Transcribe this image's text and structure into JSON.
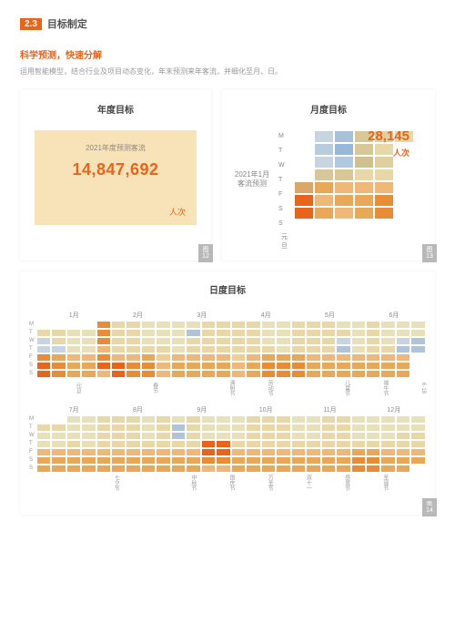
{
  "section": {
    "num": "2.3",
    "title": "目标制定"
  },
  "sub": "科学预测，快速分解",
  "desc": "运用智能模型，结合行业及项目动态变化，年末预测来年客流，并细化至月、日。",
  "annual": {
    "title": "年度目标",
    "box_title": "2021年度预测客流",
    "value": "14,847,692",
    "unit": "人次",
    "tab": "图\n12"
  },
  "monthly": {
    "title": "月度目标",
    "label": "2021年1月\n客流预测",
    "big": "28,145",
    "unit": "人次",
    "foot": "元\n旦",
    "tab": "图\n13",
    "days": [
      "M",
      "T",
      "W",
      "T",
      "F",
      "S",
      "S"
    ],
    "cols": [
      [
        "#ffffff",
        "#ffffff",
        "#ffffff",
        "#ffffff",
        "#d9a868",
        "#e8641b",
        "#e8641b"
      ],
      [
        "#c8d4e0",
        "#b8cce0",
        "#c8d4e0",
        "#d8c898",
        "#e8a858",
        "#f0b878",
        "#e8a858"
      ],
      [
        "#a8c0d8",
        "#98b8d8",
        "#b0c8e0",
        "#d8c898",
        "#f0b878",
        "#e8a858",
        "#f0b878"
      ],
      [
        "#d8c898",
        "#d8c898",
        "#d0c090",
        "#e8d8a8",
        "#f0b878",
        "#e8a858",
        "#e8a858"
      ],
      [
        "#e0d0a0",
        "#e8d8a8",
        "#e0d0a0",
        "#e8d8a8",
        "#f0b878",
        "#e88c38",
        "#e88c38"
      ],
      [
        "#e8d8a8",
        "#ffffff",
        "#ffffff",
        "#ffffff",
        "#ffffff",
        "#ffffff",
        "#ffffff"
      ]
    ]
  },
  "daily": {
    "title": "日度目标",
    "tab": "14",
    "palette": [
      "#ffffff",
      "#b0c4d8",
      "#c8d4e0",
      "#e8e0b8",
      "#e8d8a8",
      "#f0d090",
      "#f0b878",
      "#e8a858",
      "#e88c38",
      "#e8641b"
    ],
    "months1": [
      "1月",
      "2月",
      "3月",
      "4月",
      "5月",
      "6月"
    ],
    "months2": [
      "7月",
      "8月",
      "9月",
      "10月",
      "11月",
      "12月"
    ],
    "hol1": [
      "元旦",
      "",
      "春节",
      "",
      "清明节",
      "劳动节",
      "",
      "儿童节",
      "端午节",
      "6·18"
    ],
    "hol2": [
      "",
      "七夕节",
      "",
      "中秋节",
      "国庆节",
      "万圣节",
      "双十一",
      "感恩节",
      "圣诞节",
      ""
    ],
    "days": [
      "M",
      "T",
      "W",
      "T",
      "F",
      "S",
      "S"
    ],
    "g1": [
      [
        0,
        0,
        0,
        0,
        8,
        4,
        4,
        3,
        3,
        3,
        3,
        4,
        4,
        4,
        4,
        3,
        3,
        4,
        4,
        4,
        3,
        3,
        4,
        3,
        3,
        3
      ],
      [
        4,
        4,
        3,
        3,
        8,
        4,
        4,
        3,
        3,
        3,
        1,
        4,
        4,
        4,
        4,
        3,
        3,
        4,
        4,
        4,
        4,
        3,
        4,
        3,
        3,
        3
      ],
      [
        2,
        4,
        3,
        3,
        8,
        4,
        4,
        3,
        3,
        3,
        4,
        4,
        4,
        4,
        4,
        3,
        3,
        4,
        4,
        4,
        2,
        3,
        4,
        3,
        2,
        1
      ],
      [
        2,
        2,
        3,
        3,
        6,
        4,
        4,
        4,
        4,
        3,
        4,
        4,
        4,
        4,
        4,
        4,
        3,
        4,
        4,
        4,
        1,
        3,
        4,
        4,
        1,
        1
      ],
      [
        8,
        7,
        6,
        6,
        8,
        6,
        6,
        7,
        5,
        6,
        6,
        6,
        6,
        5,
        6,
        7,
        7,
        7,
        6,
        6,
        6,
        6,
        6,
        6,
        6,
        0
      ],
      [
        9,
        8,
        7,
        7,
        9,
        9,
        8,
        8,
        6,
        7,
        7,
        7,
        7,
        6,
        7,
        8,
        8,
        8,
        7,
        7,
        7,
        7,
        7,
        7,
        7,
        0
      ],
      [
        9,
        8,
        7,
        7,
        6,
        9,
        8,
        8,
        6,
        7,
        7,
        7,
        7,
        6,
        7,
        8,
        8,
        8,
        7,
        7,
        7,
        7,
        7,
        7,
        7,
        0
      ]
    ],
    "g2": [
      [
        0,
        0,
        3,
        3,
        4,
        4,
        4,
        3,
        4,
        3,
        4,
        3,
        3,
        3,
        4,
        4,
        4,
        3,
        3,
        4,
        4,
        3,
        3,
        3,
        3,
        3
      ],
      [
        4,
        4,
        3,
        3,
        4,
        4,
        4,
        3,
        4,
        1,
        4,
        3,
        3,
        3,
        4,
        4,
        4,
        3,
        3,
        4,
        4,
        3,
        3,
        3,
        3,
        3
      ],
      [
        3,
        3,
        3,
        3,
        4,
        4,
        4,
        3,
        4,
        1,
        4,
        3,
        3,
        3,
        4,
        4,
        4,
        3,
        3,
        4,
        4,
        3,
        3,
        3,
        4,
        4
      ],
      [
        3,
        3,
        4,
        3,
        4,
        4,
        4,
        4,
        4,
        4,
        4,
        9,
        9,
        4,
        4,
        4,
        4,
        4,
        4,
        4,
        4,
        4,
        4,
        4,
        4,
        4
      ],
      [
        6,
        6,
        6,
        6,
        6,
        6,
        6,
        6,
        6,
        6,
        6,
        9,
        9,
        6,
        6,
        6,
        6,
        6,
        6,
        6,
        6,
        7,
        7,
        6,
        6,
        6
      ],
      [
        7,
        7,
        7,
        7,
        7,
        7,
        7,
        7,
        7,
        7,
        7,
        8,
        8,
        7,
        7,
        7,
        7,
        7,
        7,
        7,
        7,
        8,
        8,
        7,
        7,
        7
      ],
      [
        7,
        7,
        7,
        7,
        7,
        7,
        7,
        7,
        7,
        7,
        7,
        6,
        6,
        7,
        7,
        7,
        7,
        7,
        7,
        7,
        7,
        8,
        8,
        7,
        7,
        0
      ]
    ]
  }
}
